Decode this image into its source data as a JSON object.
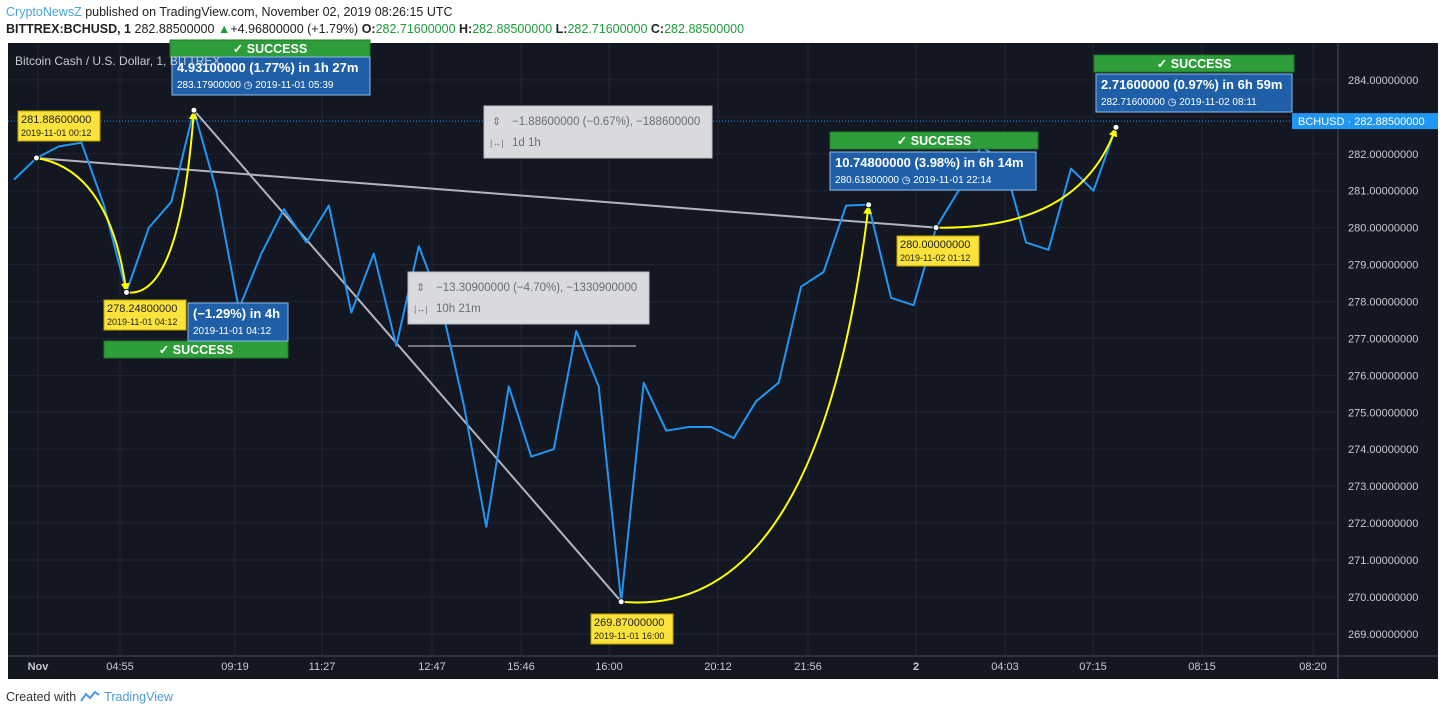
{
  "header": {
    "brand": "CryptoNewsZ",
    "published": " published on TradingView.com, November 02, 2019 08:26:15 UTC",
    "symbol": "BITTREX:BCHUSD, 1",
    "last": "282.88500000",
    "change": "+4.96800000 (+1.79%)",
    "o_label": "O:",
    "o_value": "282.71600000",
    "h_label": "H:",
    "h_value": "282.88500000",
    "l_label": "L:",
    "l_value": "282.71600000",
    "c_label": "C:",
    "c_value": "282.88500000"
  },
  "footer": {
    "created_with": "Created with",
    "tradingview": "TradingView"
  },
  "colors": {
    "background": "#131722",
    "line": "#2196f3",
    "arrow": "#ffff00",
    "measure": "#b2b5be",
    "success": "#2e9e3a",
    "label_box": "#fbe33b",
    "info_box": "#1e5fa8"
  },
  "chart_data": {
    "type": "line",
    "title": "Bitcoin Cash / U.S. Dollar, 1, BITTREX",
    "series": [
      {
        "values": [
          281.3,
          281.886,
          282.2,
          282.3,
          280.6,
          278.248,
          280.0,
          280.7,
          283.179,
          281.0,
          277.8,
          279.3,
          280.5,
          279.6,
          280.6,
          277.7,
          279.3,
          276.8,
          279.5,
          277.9,
          275.2,
          271.9,
          275.7,
          273.8,
          274.0,
          277.2,
          275.7,
          269.87,
          275.8,
          274.5,
          274.6,
          274.6,
          274.3,
          275.3,
          275.8,
          278.4,
          278.8,
          280.6,
          280.618,
          278.1,
          277.9,
          280.0,
          281.0,
          282.2,
          281.8,
          279.6,
          279.4,
          281.6,
          281.0,
          282.716
        ]
      }
    ],
    "x_tick_labels": [
      "Nov",
      "04:55",
      "09:19",
      "11:27",
      "12:47",
      "15:46",
      "16:00",
      "20:12",
      "21:56",
      "2",
      "04:03",
      "07:15",
      "08:15",
      "08:20"
    ],
    "y_tick_labels": [
      "284.00000000",
      "283.00000000",
      "282.00000000",
      "281.00000000",
      "280.00000000",
      "279.00000000",
      "278.00000000",
      "277.00000000",
      "276.00000000",
      "275.00000000",
      "274.00000000",
      "273.00000000",
      "272.00000000",
      "271.00000000",
      "270.00000000",
      "269.00000000"
    ],
    "ylim": [
      268.4,
      285.0
    ],
    "current_price_label": "BCHUSD · 282.88500000",
    "current_price": 282.885,
    "point_labels": [
      {
        "price": "281.88600000",
        "date": "2019-11-01 00:12"
      },
      {
        "price": "278.24800000",
        "date": "2019-11-01 04:12"
      },
      {
        "price": "269.87000000",
        "date": "2019-11-01 16:00"
      },
      {
        "price": "280.00000000",
        "date": "2019-11-02 01:12"
      }
    ],
    "info_boxes": [
      {
        "title": "4.93100000 (1.77%) in 1h 27m",
        "sub": "283.17900000 ◷ 2019-11-01  05:39"
      },
      {
        "title": "(−1.29%) in 4h",
        "sub": "2019-11-01  04:12"
      },
      {
        "title": "10.74800000 (3.98%) in 6h 14m",
        "sub": "280.61800000 ◷ 2019-11-01  22:14"
      },
      {
        "title": "2.71600000 (0.97%) in 6h 59m",
        "sub": "282.71600000 ◷ 2019-11-02  08:11"
      }
    ],
    "success_label": "✓ SUCCESS",
    "measure_boxes": [
      {
        "line1": "−1.88600000 (−0.67%), −188600000",
        "line2": "1d 1h"
      },
      {
        "line1": "−13.30900000 (−4.70%), −1330900000",
        "line2": "10h 21m"
      }
    ]
  }
}
